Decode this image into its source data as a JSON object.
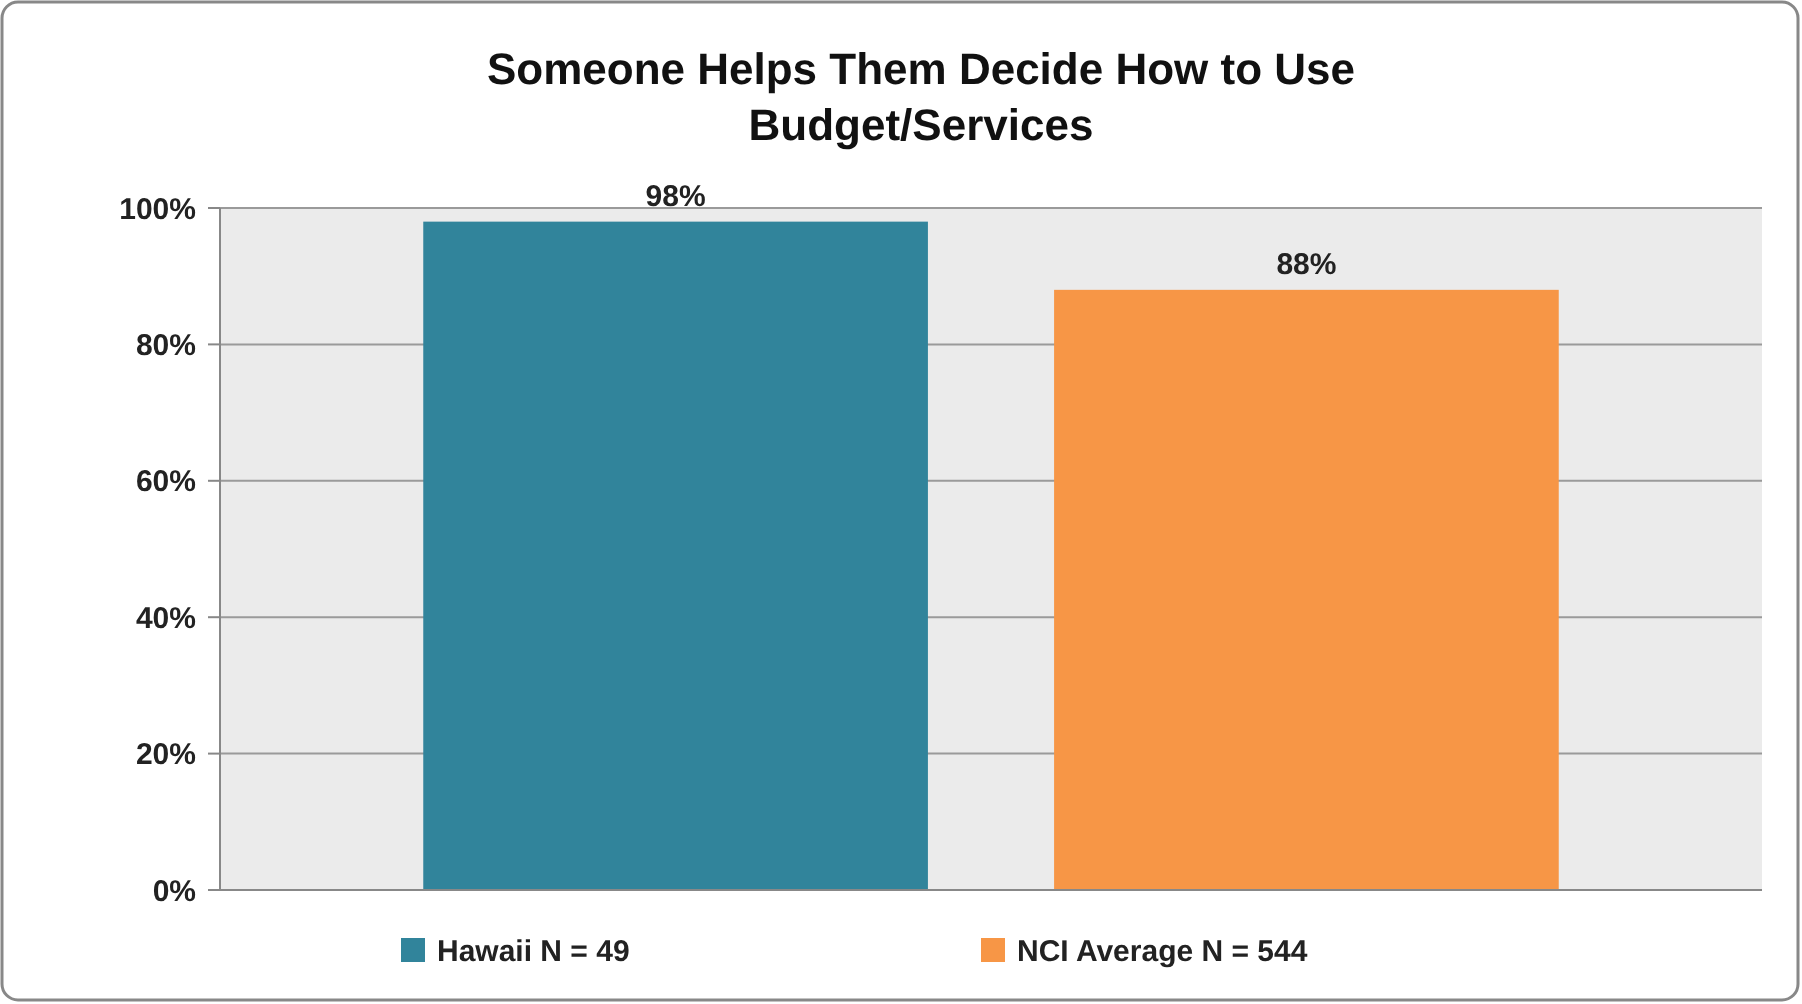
{
  "chart_data": {
    "type": "bar",
    "title": "Someone Helps Them Decide How to Use Budget/Services",
    "categories": [
      null
    ],
    "series": [
      {
        "name": "Hawaii N = 49",
        "color": "#31849b",
        "values": [
          98
        ],
        "value_labels": [
          "98%"
        ]
      },
      {
        "name": "NCI Average N = 544",
        "color": "#f79646",
        "values": [
          88
        ],
        "value_labels": [
          "88%"
        ]
      }
    ],
    "ylim": [
      0,
      100
    ],
    "yticks": [
      {
        "value": 0,
        "label": "0%"
      },
      {
        "value": 20,
        "label": "20%"
      },
      {
        "value": 40,
        "label": "40%"
      },
      {
        "value": 60,
        "label": "60%"
      },
      {
        "value": 80,
        "label": "80%"
      },
      {
        "value": 100,
        "label": "100%"
      }
    ],
    "grid": "y",
    "legend": "bottom"
  }
}
